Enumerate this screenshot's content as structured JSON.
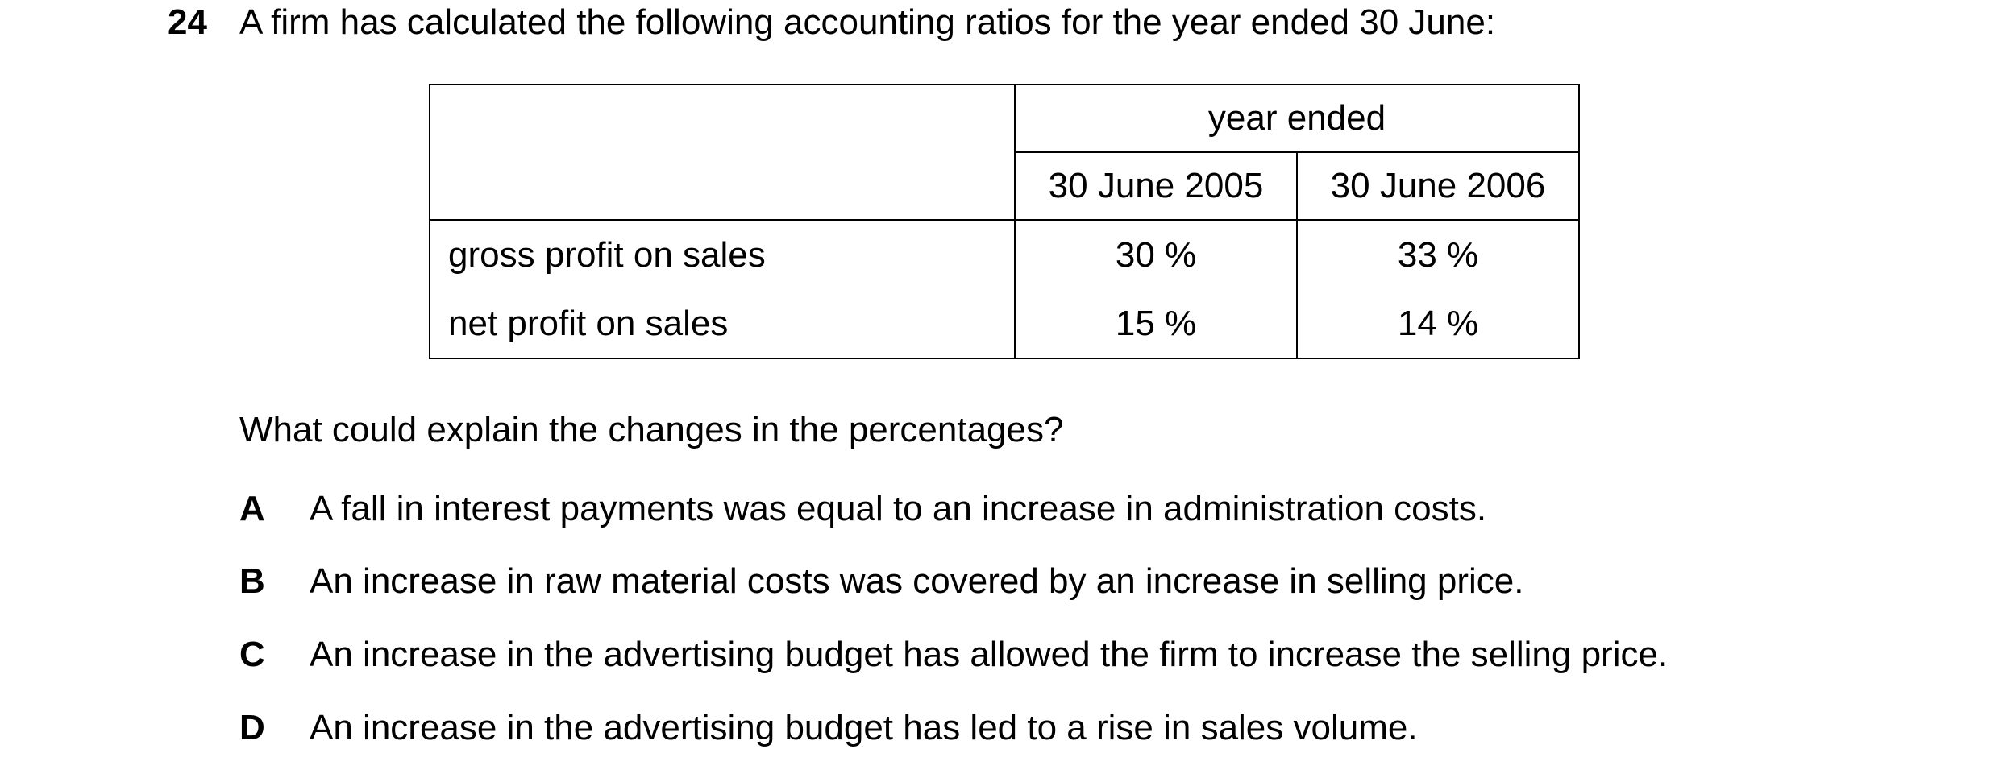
{
  "question": {
    "number": "24",
    "stem": "A firm has calculated the following accounting ratios for the year ended 30 June:",
    "prompt": "What could explain the changes in the percentages?"
  },
  "table": {
    "group_header": "year ended",
    "columns": [
      "30 June 2005",
      "30 June 2006"
    ],
    "rows": [
      {
        "label": "gross profit on sales",
        "values": [
          "30 %",
          "33 %"
        ]
      },
      {
        "label": "net profit on sales",
        "values": [
          "15 %",
          "14 %"
        ]
      }
    ]
  },
  "options": [
    {
      "letter": "A",
      "text": "A fall in interest payments was equal to an increase in administration costs."
    },
    {
      "letter": "B",
      "text": "An increase in raw material costs was covered by an increase in selling price."
    },
    {
      "letter": "C",
      "text": "An increase in the advertising budget has allowed the firm to increase the selling price."
    },
    {
      "letter": "D",
      "text": "An increase in the advertising budget has led to a rise in sales volume."
    }
  ]
}
